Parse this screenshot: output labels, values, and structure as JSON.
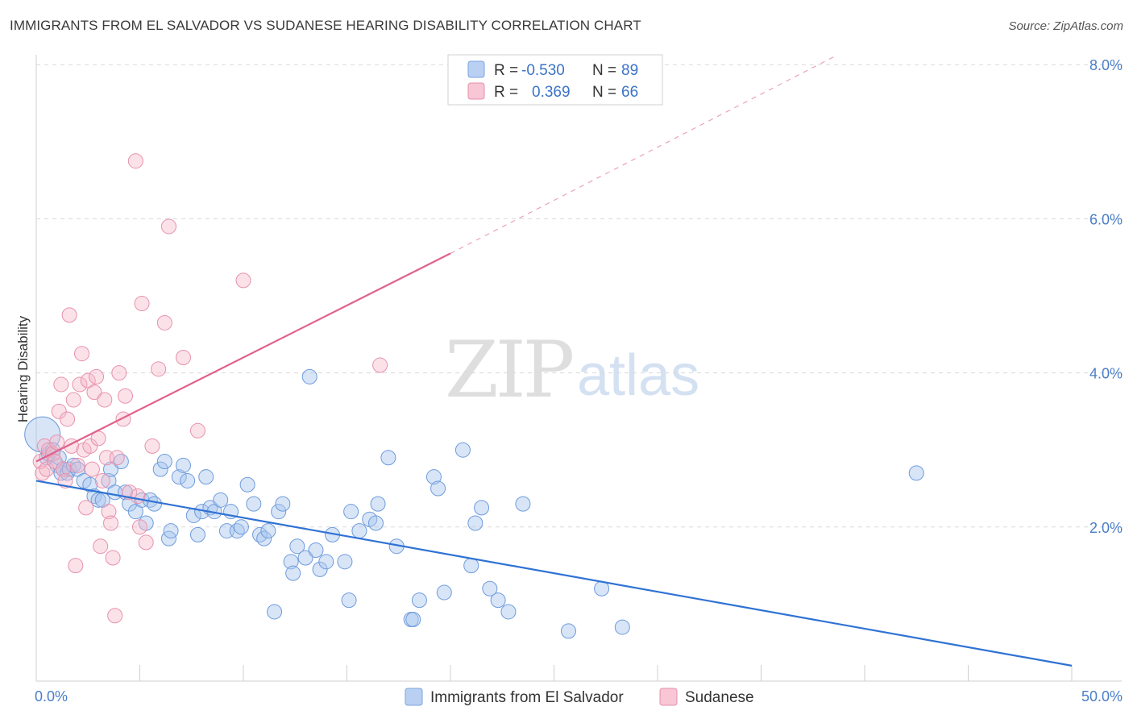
{
  "title": "IMMIGRANTS FROM EL SALVADOR VS SUDANESE HEARING DISABILITY CORRELATION CHART",
  "source": "Source: ZipAtlas.com",
  "watermark": {
    "zip": "ZIP",
    "atlas": "atlas"
  },
  "colors": {
    "blue": "#5b8fd6",
    "blue_fill": "#a9c6ee",
    "blue_line": "#2f72d4",
    "pink": "#e88aa8",
    "pink_fill": "#f5b6c9",
    "pink_line": "#e0628d",
    "grid": "#d9d9d9",
    "tick_text": "#4a7ec9"
  },
  "chart_data": {
    "type": "scatter",
    "ylabel": "Hearing Disability",
    "xlim": [
      0,
      50
    ],
    "ylim": [
      0,
      8
    ],
    "x_tick_labels": [
      {
        "value": 0,
        "label": "0.0%"
      },
      {
        "value": 50,
        "label": "50.0%"
      }
    ],
    "y_tick_labels": [
      {
        "value": 2,
        "label": "2.0%"
      },
      {
        "value": 4,
        "label": "4.0%"
      },
      {
        "value": 6,
        "label": "6.0%"
      },
      {
        "value": 8,
        "label": "8.0%"
      }
    ],
    "grid": true,
    "legend_placement": "top-center",
    "legend": [
      {
        "series": "Immigrants from El Salvador",
        "r_label": "R =",
        "r": "-0.530",
        "n_label": "N =",
        "n": "89"
      },
      {
        "series": "Sudanese",
        "r_label": "R =",
        "r": "0.369",
        "n_label": "N =",
        "n": "66"
      }
    ],
    "series": [
      {
        "name": "Immigrants from El Salvador",
        "color": "#5b8fd6",
        "trend": {
          "x": [
            0,
            50
          ],
          "y": [
            2.6,
            0.2
          ],
          "dashed_from": null
        },
        "points": [
          [
            0.3,
            3.2
          ],
          [
            0.5,
            2.9
          ],
          [
            0.6,
            2.95
          ],
          [
            0.8,
            3.0
          ],
          [
            1.0,
            2.8
          ],
          [
            1.1,
            2.9
          ],
          [
            1.2,
            2.7
          ],
          [
            1.3,
            2.75
          ],
          [
            1.5,
            2.7
          ],
          [
            1.6,
            2.75
          ],
          [
            1.8,
            2.8
          ],
          [
            2.0,
            2.75
          ],
          [
            2.3,
            2.6
          ],
          [
            2.6,
            2.55
          ],
          [
            2.8,
            2.4
          ],
          [
            3.0,
            2.35
          ],
          [
            3.2,
            2.35
          ],
          [
            3.5,
            2.6
          ],
          [
            3.6,
            2.75
          ],
          [
            3.8,
            2.45
          ],
          [
            4.1,
            2.85
          ],
          [
            4.3,
            2.45
          ],
          [
            4.5,
            2.3
          ],
          [
            4.8,
            2.2
          ],
          [
            5.1,
            2.35
          ],
          [
            5.3,
            2.05
          ],
          [
            5.5,
            2.35
          ],
          [
            5.7,
            2.3
          ],
          [
            6.0,
            2.75
          ],
          [
            6.2,
            2.85
          ],
          [
            6.4,
            1.85
          ],
          [
            6.5,
            1.95
          ],
          [
            6.9,
            2.65
          ],
          [
            7.1,
            2.8
          ],
          [
            7.3,
            2.6
          ],
          [
            7.6,
            2.15
          ],
          [
            7.8,
            1.9
          ],
          [
            8.0,
            2.2
          ],
          [
            8.2,
            2.65
          ],
          [
            8.4,
            2.25
          ],
          [
            8.6,
            2.2
          ],
          [
            8.9,
            2.35
          ],
          [
            9.2,
            1.95
          ],
          [
            9.4,
            2.2
          ],
          [
            9.7,
            1.95
          ],
          [
            9.9,
            2.0
          ],
          [
            10.2,
            2.55
          ],
          [
            10.5,
            2.3
          ],
          [
            10.8,
            1.9
          ],
          [
            11.0,
            1.85
          ],
          [
            11.2,
            1.95
          ],
          [
            11.5,
            0.9
          ],
          [
            11.7,
            2.2
          ],
          [
            11.9,
            2.3
          ],
          [
            12.3,
            1.55
          ],
          [
            12.4,
            1.4
          ],
          [
            12.6,
            1.75
          ],
          [
            13.0,
            1.6
          ],
          [
            13.2,
            3.95
          ],
          [
            13.5,
            1.7
          ],
          [
            13.7,
            1.45
          ],
          [
            14.0,
            1.55
          ],
          [
            14.3,
            1.9
          ],
          [
            14.9,
            1.55
          ],
          [
            15.1,
            1.05
          ],
          [
            15.2,
            2.2
          ],
          [
            15.6,
            1.95
          ],
          [
            16.1,
            2.1
          ],
          [
            16.4,
            2.05
          ],
          [
            16.5,
            2.3
          ],
          [
            17.0,
            2.9
          ],
          [
            17.4,
            1.75
          ],
          [
            18.1,
            0.8
          ],
          [
            18.2,
            0.8
          ],
          [
            18.5,
            1.05
          ],
          [
            19.2,
            2.65
          ],
          [
            19.4,
            2.5
          ],
          [
            19.7,
            1.15
          ],
          [
            20.6,
            3.0
          ],
          [
            21.0,
            1.5
          ],
          [
            21.2,
            2.05
          ],
          [
            21.5,
            2.25
          ],
          [
            21.9,
            1.2
          ],
          [
            22.3,
            1.05
          ],
          [
            22.8,
            0.9
          ],
          [
            23.5,
            2.3
          ],
          [
            25.7,
            0.65
          ],
          [
            27.3,
            1.2
          ],
          [
            28.3,
            0.7
          ],
          [
            42.5,
            2.7
          ]
        ]
      },
      {
        "name": "Sudanese",
        "color": "#e88aa8",
        "trend": {
          "x": [
            0,
            20,
            38.5
          ],
          "y": [
            2.85,
            5.55,
            8.1
          ],
          "dashed_from": 20
        },
        "points": [
          [
            0.2,
            2.85
          ],
          [
            0.3,
            2.7
          ],
          [
            0.4,
            3.05
          ],
          [
            0.5,
            2.75
          ],
          [
            0.6,
            3.0
          ],
          [
            0.8,
            2.95
          ],
          [
            0.9,
            2.85
          ],
          [
            1.0,
            3.1
          ],
          [
            1.1,
            3.5
          ],
          [
            1.2,
            3.85
          ],
          [
            1.3,
            2.75
          ],
          [
            1.4,
            2.6
          ],
          [
            1.5,
            3.4
          ],
          [
            1.6,
            4.75
          ],
          [
            1.7,
            3.05
          ],
          [
            1.8,
            3.65
          ],
          [
            1.9,
            1.5
          ],
          [
            2.0,
            2.8
          ],
          [
            2.1,
            3.85
          ],
          [
            2.2,
            4.25
          ],
          [
            2.3,
            3.0
          ],
          [
            2.4,
            2.25
          ],
          [
            2.5,
            3.9
          ],
          [
            2.6,
            3.05
          ],
          [
            2.7,
            2.75
          ],
          [
            2.8,
            3.75
          ],
          [
            2.9,
            3.95
          ],
          [
            3.0,
            3.15
          ],
          [
            3.1,
            1.75
          ],
          [
            3.2,
            2.6
          ],
          [
            3.3,
            3.65
          ],
          [
            3.4,
            2.9
          ],
          [
            3.5,
            2.2
          ],
          [
            3.6,
            2.05
          ],
          [
            3.7,
            1.6
          ],
          [
            3.8,
            0.85
          ],
          [
            3.9,
            2.9
          ],
          [
            4.0,
            4.0
          ],
          [
            4.2,
            3.4
          ],
          [
            4.3,
            3.7
          ],
          [
            4.5,
            2.45
          ],
          [
            4.8,
            6.75
          ],
          [
            4.9,
            2.4
          ],
          [
            5.0,
            2.0
          ],
          [
            5.1,
            4.9
          ],
          [
            5.3,
            1.8
          ],
          [
            5.6,
            3.05
          ],
          [
            5.9,
            4.05
          ],
          [
            6.2,
            4.65
          ],
          [
            6.4,
            5.9
          ],
          [
            7.1,
            4.2
          ],
          [
            7.8,
            3.25
          ],
          [
            10.0,
            5.2
          ],
          [
            16.6,
            4.1
          ]
        ]
      }
    ]
  },
  "bottom_legend": [
    {
      "label": "Immigrants from El Salvador"
    },
    {
      "label": "Sudanese"
    }
  ]
}
